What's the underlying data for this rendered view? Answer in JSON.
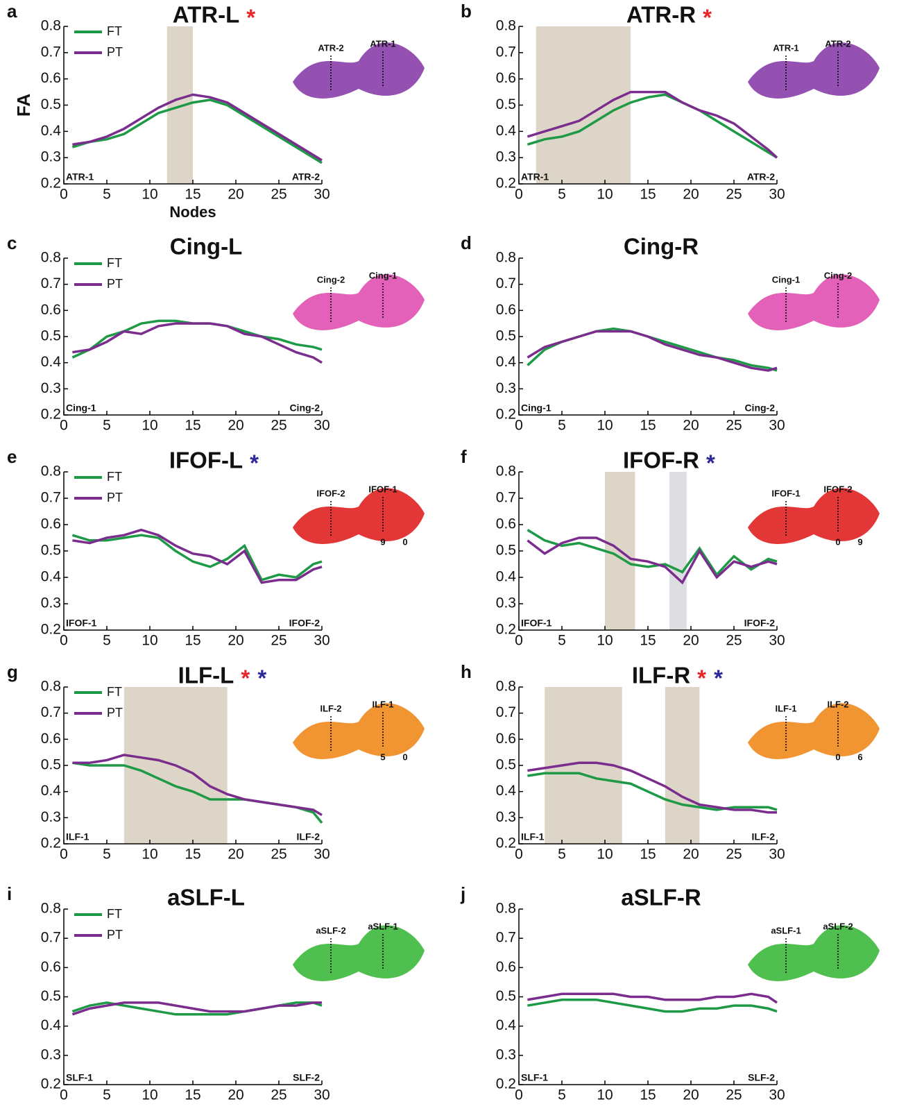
{
  "chart_data": [
    {
      "type": "line",
      "panel": "a",
      "title": "ATR-L",
      "markers": [
        {
          "text": "*",
          "color": "#e8262a"
        }
      ],
      "ylabel": "FA",
      "xlabel": "Nodes",
      "legend": true,
      "x": [
        1,
        3,
        5,
        7,
        9,
        11,
        13,
        15,
        17,
        19,
        21,
        23,
        25,
        27,
        29,
        30
      ],
      "xlim": [
        0,
        30
      ],
      "ylim": [
        0.2,
        0.8
      ],
      "xticks": [
        0,
        5,
        10,
        15,
        20,
        25,
        30
      ],
      "yticks": [
        0.2,
        0.3,
        0.4,
        0.5,
        0.6,
        0.7,
        0.8
      ],
      "start_label": "ATR-1",
      "end_label": "ATR-2",
      "highlights": [
        {
          "x": [
            12,
            15
          ],
          "color": "#ddd6c8"
        }
      ],
      "inset": {
        "color": "#8a3ea8",
        "labels": [
          "ATR-2",
          "ATR-1"
        ]
      },
      "series": [
        {
          "name": "FT",
          "color": "#1e9a46",
          "values": [
            0.34,
            0.36,
            0.37,
            0.39,
            0.43,
            0.47,
            0.49,
            0.51,
            0.52,
            0.5,
            0.46,
            0.42,
            0.38,
            0.34,
            0.3,
            0.28
          ]
        },
        {
          "name": "PT",
          "color": "#7b2d8e",
          "values": [
            0.35,
            0.36,
            0.38,
            0.41,
            0.45,
            0.49,
            0.52,
            0.54,
            0.53,
            0.51,
            0.47,
            0.43,
            0.39,
            0.35,
            0.31,
            0.29
          ]
        }
      ]
    },
    {
      "type": "line",
      "panel": "b",
      "title": "ATR-R",
      "markers": [
        {
          "text": "*",
          "color": "#e8262a"
        }
      ],
      "x": [
        1,
        3,
        5,
        7,
        9,
        11,
        13,
        15,
        17,
        19,
        21,
        23,
        25,
        27,
        29,
        30
      ],
      "xlim": [
        0,
        30
      ],
      "ylim": [
        0.2,
        0.8
      ],
      "xticks": [
        0,
        5,
        10,
        15,
        20,
        25,
        30
      ],
      "yticks": [
        0.2,
        0.3,
        0.4,
        0.5,
        0.6,
        0.7,
        0.8
      ],
      "start_label": "ATR-1",
      "end_label": "ATR-2",
      "highlights": [
        {
          "x": [
            2,
            13
          ],
          "color": "#ddd6c8"
        }
      ],
      "inset": {
        "color": "#8a3ea8",
        "labels": [
          "ATR-1",
          "ATR-2"
        ]
      },
      "series": [
        {
          "color": "#1e9a46",
          "values": [
            0.35,
            0.37,
            0.38,
            0.4,
            0.44,
            0.48,
            0.51,
            0.53,
            0.54,
            0.51,
            0.48,
            0.44,
            0.4,
            0.36,
            0.32,
            0.3
          ]
        },
        {
          "color": "#7b2d8e",
          "values": [
            0.38,
            0.4,
            0.42,
            0.44,
            0.48,
            0.52,
            0.55,
            0.55,
            0.55,
            0.51,
            0.48,
            0.46,
            0.43,
            0.38,
            0.33,
            0.3
          ]
        }
      ]
    },
    {
      "type": "line",
      "panel": "c",
      "title": "Cing-L",
      "legend": true,
      "x": [
        1,
        3,
        5,
        7,
        9,
        11,
        13,
        15,
        17,
        19,
        21,
        23,
        25,
        27,
        29,
        30
      ],
      "xlim": [
        0,
        30
      ],
      "ylim": [
        0.2,
        0.8
      ],
      "xticks": [
        0,
        5,
        10,
        15,
        20,
        25,
        30
      ],
      "yticks": [
        0.2,
        0.3,
        0.4,
        0.5,
        0.6,
        0.7,
        0.8
      ],
      "start_label": "Cing-1",
      "end_label": "Cing-2",
      "inset": {
        "color": "#e050b0",
        "labels": [
          "Cing-2",
          "Cing-1"
        ]
      },
      "series": [
        {
          "name": "FT",
          "color": "#1e9a46",
          "values": [
            0.42,
            0.45,
            0.5,
            0.52,
            0.55,
            0.56,
            0.56,
            0.55,
            0.55,
            0.54,
            0.52,
            0.5,
            0.49,
            0.47,
            0.46,
            0.45
          ]
        },
        {
          "name": "PT",
          "color": "#7b2d8e",
          "values": [
            0.44,
            0.45,
            0.48,
            0.52,
            0.51,
            0.54,
            0.55,
            0.55,
            0.55,
            0.54,
            0.51,
            0.5,
            0.47,
            0.44,
            0.42,
            0.4
          ]
        }
      ]
    },
    {
      "type": "line",
      "panel": "d",
      "title": "Cing-R",
      "x": [
        1,
        3,
        5,
        7,
        9,
        11,
        13,
        15,
        17,
        19,
        21,
        23,
        25,
        27,
        29,
        30
      ],
      "xlim": [
        0,
        30
      ],
      "ylim": [
        0.2,
        0.8
      ],
      "xticks": [
        0,
        5,
        10,
        15,
        20,
        25,
        30
      ],
      "yticks": [
        0.2,
        0.3,
        0.4,
        0.5,
        0.6,
        0.7,
        0.8
      ],
      "start_label": "Cing-1",
      "end_label": "Cing-2",
      "inset": {
        "color": "#e050b0",
        "labels": [
          "Cing-1",
          "Cing-2"
        ]
      },
      "series": [
        {
          "color": "#1e9a46",
          "values": [
            0.39,
            0.45,
            0.48,
            0.5,
            0.52,
            0.53,
            0.52,
            0.5,
            0.48,
            0.46,
            0.44,
            0.42,
            0.41,
            0.39,
            0.38,
            0.37
          ]
        },
        {
          "color": "#7b2d8e",
          "values": [
            0.42,
            0.46,
            0.48,
            0.5,
            0.52,
            0.52,
            0.52,
            0.5,
            0.47,
            0.45,
            0.43,
            0.42,
            0.4,
            0.38,
            0.37,
            0.38
          ]
        }
      ]
    },
    {
      "type": "line",
      "panel": "e",
      "title": "IFOF-L",
      "markers": [
        {
          "text": "*",
          "color": "#2a2a9a"
        }
      ],
      "legend": true,
      "x": [
        1,
        3,
        5,
        7,
        9,
        11,
        13,
        15,
        17,
        19,
        21,
        23,
        25,
        27,
        29,
        30
      ],
      "xlim": [
        0,
        30
      ],
      "ylim": [
        0.2,
        0.8
      ],
      "xticks": [
        0,
        5,
        10,
        15,
        20,
        25,
        30
      ],
      "yticks": [
        0.2,
        0.3,
        0.4,
        0.5,
        0.6,
        0.7,
        0.8
      ],
      "start_label": "IFOF-1",
      "end_label": "IFOF-2",
      "inset": {
        "color": "#e02020",
        "labels": [
          "IFOF-2",
          "IFOF-1",
          "9",
          "0"
        ]
      },
      "series": [
        {
          "name": "FT",
          "color": "#1e9a46",
          "values": [
            0.56,
            0.54,
            0.54,
            0.55,
            0.56,
            0.55,
            0.5,
            0.46,
            0.44,
            0.47,
            0.52,
            0.39,
            0.41,
            0.4,
            0.45,
            0.46
          ]
        },
        {
          "name": "PT",
          "color": "#7b2d8e",
          "values": [
            0.54,
            0.53,
            0.55,
            0.56,
            0.58,
            0.56,
            0.52,
            0.49,
            0.48,
            0.45,
            0.5,
            0.38,
            0.39,
            0.39,
            0.43,
            0.44
          ]
        }
      ]
    },
    {
      "type": "line",
      "panel": "f",
      "title": "IFOF-R",
      "markers": [
        {
          "text": "*",
          "color": "#2a2a9a"
        }
      ],
      "x": [
        1,
        3,
        5,
        7,
        9,
        11,
        13,
        15,
        17,
        19,
        21,
        23,
        25,
        27,
        29,
        30
      ],
      "xlim": [
        0,
        30
      ],
      "ylim": [
        0.2,
        0.8
      ],
      "xticks": [
        0,
        5,
        10,
        15,
        20,
        25,
        30
      ],
      "yticks": [
        0.2,
        0.3,
        0.4,
        0.5,
        0.6,
        0.7,
        0.8
      ],
      "start_label": "IFOF-1",
      "end_label": "IFOF-2",
      "highlights": [
        {
          "x": [
            10,
            13.5
          ],
          "color": "#ddd6c8"
        },
        {
          "x": [
            17.5,
            19.5
          ],
          "color": "#dcdee2"
        }
      ],
      "inset": {
        "color": "#e02020",
        "labels": [
          "IFOF-1",
          "IFOF-2",
          "0",
          "9"
        ]
      },
      "series": [
        {
          "color": "#1e9a46",
          "values": [
            0.58,
            0.54,
            0.52,
            0.53,
            0.51,
            0.49,
            0.45,
            0.44,
            0.45,
            0.42,
            0.51,
            0.41,
            0.48,
            0.43,
            0.47,
            0.46
          ]
        },
        {
          "color": "#7b2d8e",
          "values": [
            0.54,
            0.49,
            0.53,
            0.55,
            0.55,
            0.52,
            0.47,
            0.46,
            0.44,
            0.38,
            0.5,
            0.4,
            0.46,
            0.44,
            0.46,
            0.45
          ]
        }
      ]
    },
    {
      "type": "line",
      "panel": "g",
      "title": "ILF-L",
      "markers": [
        {
          "text": "*",
          "color": "#e8262a"
        },
        {
          "text": "*",
          "color": "#2a2a9a"
        }
      ],
      "legend": true,
      "x": [
        1,
        3,
        5,
        7,
        9,
        11,
        13,
        15,
        17,
        19,
        21,
        23,
        25,
        27,
        29,
        30
      ],
      "xlim": [
        0,
        30
      ],
      "ylim": [
        0.2,
        0.8
      ],
      "xticks": [
        0,
        5,
        10,
        15,
        20,
        25,
        30
      ],
      "yticks": [
        0.2,
        0.3,
        0.4,
        0.5,
        0.6,
        0.7,
        0.8
      ],
      "start_label": "ILF-1",
      "end_label": "ILF-2",
      "highlights": [
        {
          "x": [
            7,
            19
          ],
          "color": "#ddd6c8"
        }
      ],
      "inset": {
        "color": "#f08a1c",
        "labels": [
          "ILF-2",
          "ILF-1",
          "5",
          "0"
        ]
      },
      "series": [
        {
          "name": "FT",
          "color": "#1e9a46",
          "values": [
            0.51,
            0.5,
            0.5,
            0.5,
            0.48,
            0.45,
            0.42,
            0.4,
            0.37,
            0.37,
            0.37,
            0.36,
            0.35,
            0.34,
            0.32,
            0.28
          ]
        },
        {
          "name": "PT",
          "color": "#7b2d8e",
          "values": [
            0.51,
            0.51,
            0.52,
            0.54,
            0.53,
            0.52,
            0.5,
            0.47,
            0.42,
            0.39,
            0.37,
            0.36,
            0.35,
            0.34,
            0.33,
            0.31
          ]
        }
      ]
    },
    {
      "type": "line",
      "panel": "h",
      "title": "ILF-R",
      "markers": [
        {
          "text": "*",
          "color": "#e8262a"
        },
        {
          "text": "*",
          "color": "#2a2a9a"
        }
      ],
      "x": [
        1,
        3,
        5,
        7,
        9,
        11,
        13,
        15,
        17,
        19,
        21,
        23,
        25,
        27,
        29,
        30
      ],
      "xlim": [
        0,
        30
      ],
      "ylim": [
        0.2,
        0.8
      ],
      "xticks": [
        0,
        5,
        10,
        15,
        20,
        25,
        30
      ],
      "yticks": [
        0.2,
        0.3,
        0.4,
        0.5,
        0.6,
        0.7,
        0.8
      ],
      "start_label": "ILF-1",
      "end_label": "ILF-2",
      "highlights": [
        {
          "x": [
            3,
            12
          ],
          "color": "#ddd6c8"
        },
        {
          "x": [
            17,
            21
          ],
          "color": "#ddd6c8"
        }
      ],
      "inset": {
        "color": "#f08a1c",
        "labels": [
          "ILF-1",
          "ILF-2",
          "0",
          "6"
        ]
      },
      "series": [
        {
          "color": "#1e9a46",
          "values": [
            0.46,
            0.47,
            0.47,
            0.47,
            0.45,
            0.44,
            0.43,
            0.4,
            0.37,
            0.35,
            0.34,
            0.33,
            0.34,
            0.34,
            0.34,
            0.33
          ]
        },
        {
          "color": "#7b2d8e",
          "values": [
            0.48,
            0.49,
            0.5,
            0.51,
            0.51,
            0.5,
            0.48,
            0.45,
            0.42,
            0.38,
            0.35,
            0.34,
            0.33,
            0.33,
            0.32,
            0.32
          ]
        }
      ]
    },
    {
      "type": "line",
      "panel": "i",
      "title": "aSLF-L",
      "legend": true,
      "x": [
        1,
        3,
        5,
        7,
        9,
        11,
        13,
        15,
        17,
        19,
        21,
        23,
        25,
        27,
        29,
        30
      ],
      "xlim": [
        0,
        30
      ],
      "ylim": [
        0.2,
        0.8
      ],
      "xticks": [
        0,
        5,
        10,
        15,
        20,
        25,
        30
      ],
      "yticks": [
        0.2,
        0.3,
        0.4,
        0.5,
        0.6,
        0.7,
        0.8
      ],
      "start_label": "SLF-1",
      "end_label": "SLF-2",
      "inset": {
        "color": "#3cb83c",
        "labels": [
          "aSLF-2",
          "aSLF-1"
        ]
      },
      "series": [
        {
          "name": "FT",
          "color": "#1e9a46",
          "values": [
            0.45,
            0.47,
            0.48,
            0.47,
            0.46,
            0.45,
            0.44,
            0.44,
            0.44,
            0.44,
            0.45,
            0.46,
            0.47,
            0.48,
            0.48,
            0.47
          ]
        },
        {
          "name": "PT",
          "color": "#7b2d8e",
          "values": [
            0.44,
            0.46,
            0.47,
            0.48,
            0.48,
            0.48,
            0.47,
            0.46,
            0.45,
            0.45,
            0.45,
            0.46,
            0.47,
            0.47,
            0.48,
            0.48
          ]
        }
      ]
    },
    {
      "type": "line",
      "panel": "j",
      "title": "aSLF-R",
      "x": [
        1,
        3,
        5,
        7,
        9,
        11,
        13,
        15,
        17,
        19,
        21,
        23,
        25,
        27,
        29,
        30
      ],
      "xlim": [
        0,
        30
      ],
      "ylim": [
        0.2,
        0.8
      ],
      "xticks": [
        0,
        5,
        10,
        15,
        20,
        25,
        30
      ],
      "yticks": [
        0.2,
        0.3,
        0.4,
        0.5,
        0.6,
        0.7,
        0.8
      ],
      "start_label": "SLF-1",
      "end_label": "SLF-2",
      "inset": {
        "color": "#3cb83c",
        "labels": [
          "aSLF-1",
          "aSLF-2"
        ]
      },
      "series": [
        {
          "color": "#1e9a46",
          "values": [
            0.47,
            0.48,
            0.49,
            0.49,
            0.49,
            0.48,
            0.47,
            0.46,
            0.45,
            0.45,
            0.46,
            0.46,
            0.47,
            0.47,
            0.46,
            0.45
          ]
        },
        {
          "color": "#7b2d8e",
          "values": [
            0.49,
            0.5,
            0.51,
            0.51,
            0.51,
            0.51,
            0.5,
            0.5,
            0.49,
            0.49,
            0.49,
            0.5,
            0.5,
            0.51,
            0.5,
            0.48
          ]
        }
      ]
    }
  ]
}
